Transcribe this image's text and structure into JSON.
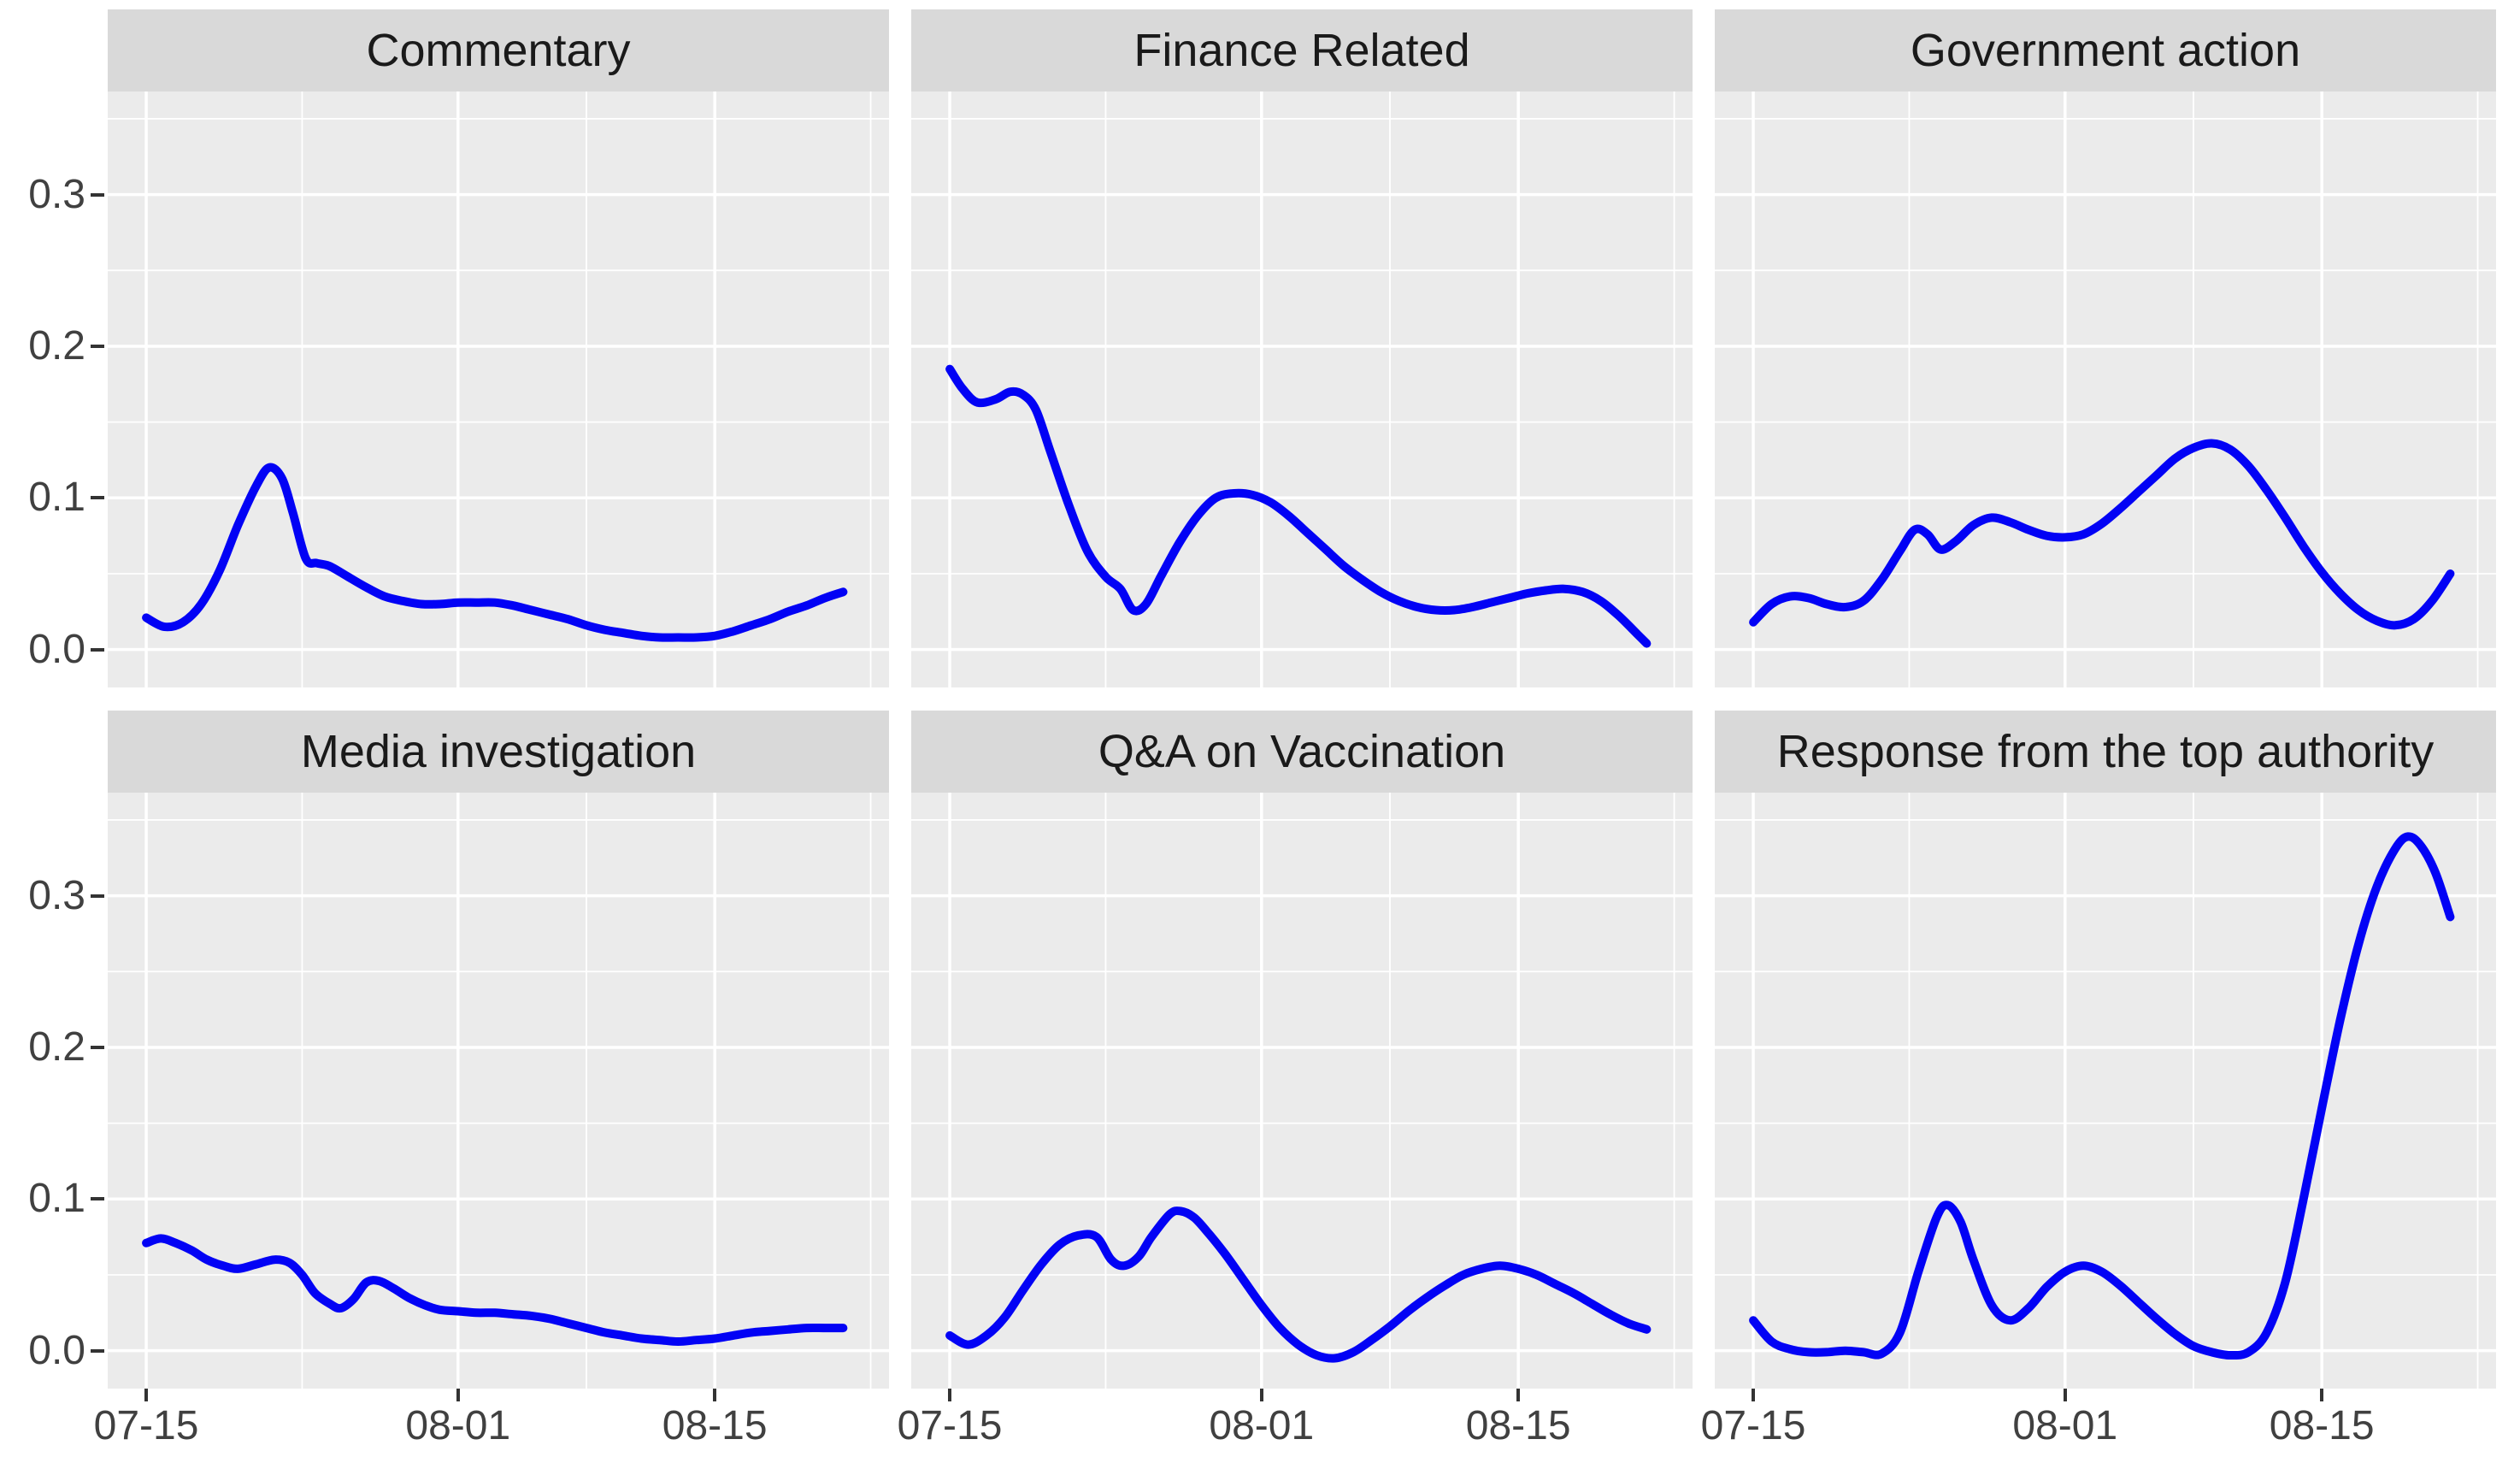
{
  "figure": {
    "background": "#FFFFFF",
    "panel_background": "#EBEBEB",
    "strip_background": "#D9D9D9",
    "gridline_color": "#FFFFFF",
    "axis_text_color": "#404040",
    "strip_text_color": "#1A1A1A",
    "tick_mark_color": "#333333"
  },
  "chart_data": {
    "type": "line",
    "layout": "faceted 2x3 grid (ggplot style), one blue line per facet",
    "legend": false,
    "grid": true,
    "line_color": "#0202F5",
    "x_unit": "days since 07-15",
    "x_tick_labels": [
      "07-15",
      "08-01",
      "08-15"
    ],
    "x_tick_days": [
      0,
      17,
      31
    ],
    "x_minor_days": [
      8.5,
      24,
      39.5
    ],
    "x_domain": [
      -2.1,
      40.5
    ],
    "y_tick_labels": [
      "0.0",
      "0.1",
      "0.2",
      "0.3"
    ],
    "y_tick_values": [
      0,
      0.1,
      0.2,
      0.3
    ],
    "y_minor_values": [
      0.05,
      0.15,
      0.25,
      0.35
    ],
    "y_domain": [
      -0.025,
      0.368
    ],
    "facets": [
      {
        "title": "Commentary",
        "points": [
          [
            0,
            0.021
          ],
          [
            1,
            0.015
          ],
          [
            2,
            0.018
          ],
          [
            3,
            0.03
          ],
          [
            4,
            0.052
          ],
          [
            5,
            0.082
          ],
          [
            6,
            0.108
          ],
          [
            6.7,
            0.12
          ],
          [
            7.4,
            0.113
          ],
          [
            8,
            0.09
          ],
          [
            8.7,
            0.06
          ],
          [
            9.3,
            0.057
          ],
          [
            10,
            0.055
          ],
          [
            11,
            0.048
          ],
          [
            12,
            0.041
          ],
          [
            13,
            0.035
          ],
          [
            14,
            0.032
          ],
          [
            15,
            0.03
          ],
          [
            16,
            0.03
          ],
          [
            17,
            0.031
          ],
          [
            18,
            0.031
          ],
          [
            19,
            0.031
          ],
          [
            20,
            0.029
          ],
          [
            21,
            0.026
          ],
          [
            22,
            0.023
          ],
          [
            23,
            0.02
          ],
          [
            24,
            0.016
          ],
          [
            25,
            0.013
          ],
          [
            26,
            0.011
          ],
          [
            27,
            0.009
          ],
          [
            28,
            0.008
          ],
          [
            29,
            0.008
          ],
          [
            30,
            0.008
          ],
          [
            31,
            0.009
          ],
          [
            32,
            0.012
          ],
          [
            33,
            0.016
          ],
          [
            34,
            0.02
          ],
          [
            35,
            0.025
          ],
          [
            36,
            0.029
          ],
          [
            37,
            0.034
          ],
          [
            38,
            0.038
          ]
        ]
      },
      {
        "title": "Finance Related",
        "points": [
          [
            0,
            0.185
          ],
          [
            0.7,
            0.172
          ],
          [
            1.5,
            0.163
          ],
          [
            2.5,
            0.165
          ],
          [
            3.3,
            0.17
          ],
          [
            4,
            0.168
          ],
          [
            4.7,
            0.158
          ],
          [
            5.5,
            0.13
          ],
          [
            6.5,
            0.095
          ],
          [
            7.5,
            0.065
          ],
          [
            8.5,
            0.048
          ],
          [
            9.3,
            0.04
          ],
          [
            10,
            0.026
          ],
          [
            10.7,
            0.03
          ],
          [
            11.5,
            0.048
          ],
          [
            12.5,
            0.07
          ],
          [
            13.5,
            0.088
          ],
          [
            14.5,
            0.1
          ],
          [
            15.5,
            0.103
          ],
          [
            16.5,
            0.102
          ],
          [
            17.5,
            0.097
          ],
          [
            18.5,
            0.088
          ],
          [
            19.5,
            0.077
          ],
          [
            20.5,
            0.066
          ],
          [
            21.5,
            0.055
          ],
          [
            22.5,
            0.046
          ],
          [
            23.5,
            0.038
          ],
          [
            24.5,
            0.032
          ],
          [
            25.5,
            0.028
          ],
          [
            26.5,
            0.026
          ],
          [
            27.5,
            0.026
          ],
          [
            28.5,
            0.028
          ],
          [
            29.5,
            0.031
          ],
          [
            30.5,
            0.034
          ],
          [
            31.5,
            0.037
          ],
          [
            32.5,
            0.039
          ],
          [
            33.5,
            0.04
          ],
          [
            34.5,
            0.038
          ],
          [
            35.5,
            0.032
          ],
          [
            36.5,
            0.022
          ],
          [
            37.5,
            0.01
          ],
          [
            38,
            0.004
          ]
        ]
      },
      {
        "title": "Government action",
        "points": [
          [
            0,
            0.018
          ],
          [
            1,
            0.03
          ],
          [
            2,
            0.035
          ],
          [
            3,
            0.034
          ],
          [
            4,
            0.03
          ],
          [
            5,
            0.028
          ],
          [
            6,
            0.032
          ],
          [
            7,
            0.046
          ],
          [
            8,
            0.065
          ],
          [
            8.8,
            0.079
          ],
          [
            9.5,
            0.076
          ],
          [
            10.2,
            0.066
          ],
          [
            11,
            0.071
          ],
          [
            12,
            0.082
          ],
          [
            13,
            0.087
          ],
          [
            14,
            0.084
          ],
          [
            15,
            0.079
          ],
          [
            16,
            0.075
          ],
          [
            17,
            0.074
          ],
          [
            18,
            0.076
          ],
          [
            19,
            0.083
          ],
          [
            20,
            0.093
          ],
          [
            21,
            0.104
          ],
          [
            22,
            0.115
          ],
          [
            23,
            0.126
          ],
          [
            24,
            0.133
          ],
          [
            25,
            0.136
          ],
          [
            26,
            0.132
          ],
          [
            27,
            0.121
          ],
          [
            28,
            0.105
          ],
          [
            29,
            0.087
          ],
          [
            30,
            0.068
          ],
          [
            31,
            0.051
          ],
          [
            32,
            0.037
          ],
          [
            33,
            0.026
          ],
          [
            34,
            0.019
          ],
          [
            35,
            0.016
          ],
          [
            36,
            0.02
          ],
          [
            37,
            0.032
          ],
          [
            38,
            0.05
          ]
        ]
      },
      {
        "title": "Media investigation",
        "points": [
          [
            0,
            0.071
          ],
          [
            0.8,
            0.074
          ],
          [
            1.6,
            0.071
          ],
          [
            2.5,
            0.066
          ],
          [
            3.3,
            0.06
          ],
          [
            4.2,
            0.056
          ],
          [
            5,
            0.054
          ],
          [
            6,
            0.057
          ],
          [
            7,
            0.06
          ],
          [
            7.8,
            0.058
          ],
          [
            8.5,
            0.05
          ],
          [
            9.2,
            0.038
          ],
          [
            10,
            0.031
          ],
          [
            10.6,
            0.028
          ],
          [
            11.3,
            0.034
          ],
          [
            12,
            0.045
          ],
          [
            12.7,
            0.046
          ],
          [
            13.5,
            0.041
          ],
          [
            14.3,
            0.035
          ],
          [
            15.2,
            0.03
          ],
          [
            16,
            0.027
          ],
          [
            17,
            0.026
          ],
          [
            18,
            0.025
          ],
          [
            19,
            0.025
          ],
          [
            20,
            0.024
          ],
          [
            21,
            0.023
          ],
          [
            22,
            0.021
          ],
          [
            23,
            0.018
          ],
          [
            24,
            0.015
          ],
          [
            25,
            0.012
          ],
          [
            26,
            0.01
          ],
          [
            27,
            0.008
          ],
          [
            28,
            0.007
          ],
          [
            29,
            0.006
          ],
          [
            30,
            0.007
          ],
          [
            31,
            0.008
          ],
          [
            32,
            0.01
          ],
          [
            33,
            0.012
          ],
          [
            34,
            0.013
          ],
          [
            35,
            0.014
          ],
          [
            36,
            0.015
          ],
          [
            37,
            0.015
          ],
          [
            38,
            0.015
          ]
        ]
      },
      {
        "title": "Q&A on Vaccination",
        "points": [
          [
            0,
            0.01
          ],
          [
            1,
            0.004
          ],
          [
            2,
            0.01
          ],
          [
            3,
            0.022
          ],
          [
            4,
            0.04
          ],
          [
            5,
            0.057
          ],
          [
            6,
            0.07
          ],
          [
            7,
            0.076
          ],
          [
            8,
            0.075
          ],
          [
            8.8,
            0.06
          ],
          [
            9.5,
            0.056
          ],
          [
            10.3,
            0.062
          ],
          [
            11,
            0.075
          ],
          [
            12,
            0.09
          ],
          [
            12.6,
            0.092
          ],
          [
            13.3,
            0.088
          ],
          [
            14,
            0.079
          ],
          [
            15,
            0.064
          ],
          [
            16,
            0.047
          ],
          [
            17,
            0.03
          ],
          [
            18,
            0.015
          ],
          [
            19,
            0.004
          ],
          [
            20,
            -0.003
          ],
          [
            21,
            -0.005
          ],
          [
            22,
            -0.001
          ],
          [
            23,
            0.007
          ],
          [
            24,
            0.016
          ],
          [
            25,
            0.026
          ],
          [
            26,
            0.035
          ],
          [
            27,
            0.043
          ],
          [
            28,
            0.05
          ],
          [
            29,
            0.054
          ],
          [
            30,
            0.056
          ],
          [
            31,
            0.054
          ],
          [
            32,
            0.05
          ],
          [
            33,
            0.044
          ],
          [
            34,
            0.038
          ],
          [
            35,
            0.031
          ],
          [
            36,
            0.024
          ],
          [
            37,
            0.018
          ],
          [
            38,
            0.014
          ]
        ]
      },
      {
        "title": "Response from the top authority",
        "points": [
          [
            0,
            0.02
          ],
          [
            1,
            0.006
          ],
          [
            2,
            0.001
          ],
          [
            3,
            -0.001
          ],
          [
            4,
            -0.001
          ],
          [
            5,
            0.0
          ],
          [
            6,
            -0.001
          ],
          [
            7,
            -0.002
          ],
          [
            8,
            0.012
          ],
          [
            9,
            0.052
          ],
          [
            10,
            0.088
          ],
          [
            10.6,
            0.096
          ],
          [
            11.3,
            0.085
          ],
          [
            12,
            0.06
          ],
          [
            13,
            0.03
          ],
          [
            14,
            0.02
          ],
          [
            15,
            0.028
          ],
          [
            16,
            0.042
          ],
          [
            17,
            0.052
          ],
          [
            18,
            0.056
          ],
          [
            19,
            0.052
          ],
          [
            20,
            0.043
          ],
          [
            21,
            0.032
          ],
          [
            22,
            0.021
          ],
          [
            23,
            0.011
          ],
          [
            24,
            0.003
          ],
          [
            25,
            -0.001
          ],
          [
            26,
            -0.003
          ],
          [
            27,
            -0.001
          ],
          [
            28,
            0.012
          ],
          [
            29,
            0.045
          ],
          [
            30,
            0.1
          ],
          [
            31,
            0.16
          ],
          [
            32,
            0.218
          ],
          [
            33,
            0.268
          ],
          [
            34,
            0.306
          ],
          [
            35,
            0.331
          ],
          [
            35.7,
            0.339
          ],
          [
            36.4,
            0.333
          ],
          [
            37.2,
            0.315
          ],
          [
            38,
            0.286
          ]
        ]
      }
    ]
  }
}
